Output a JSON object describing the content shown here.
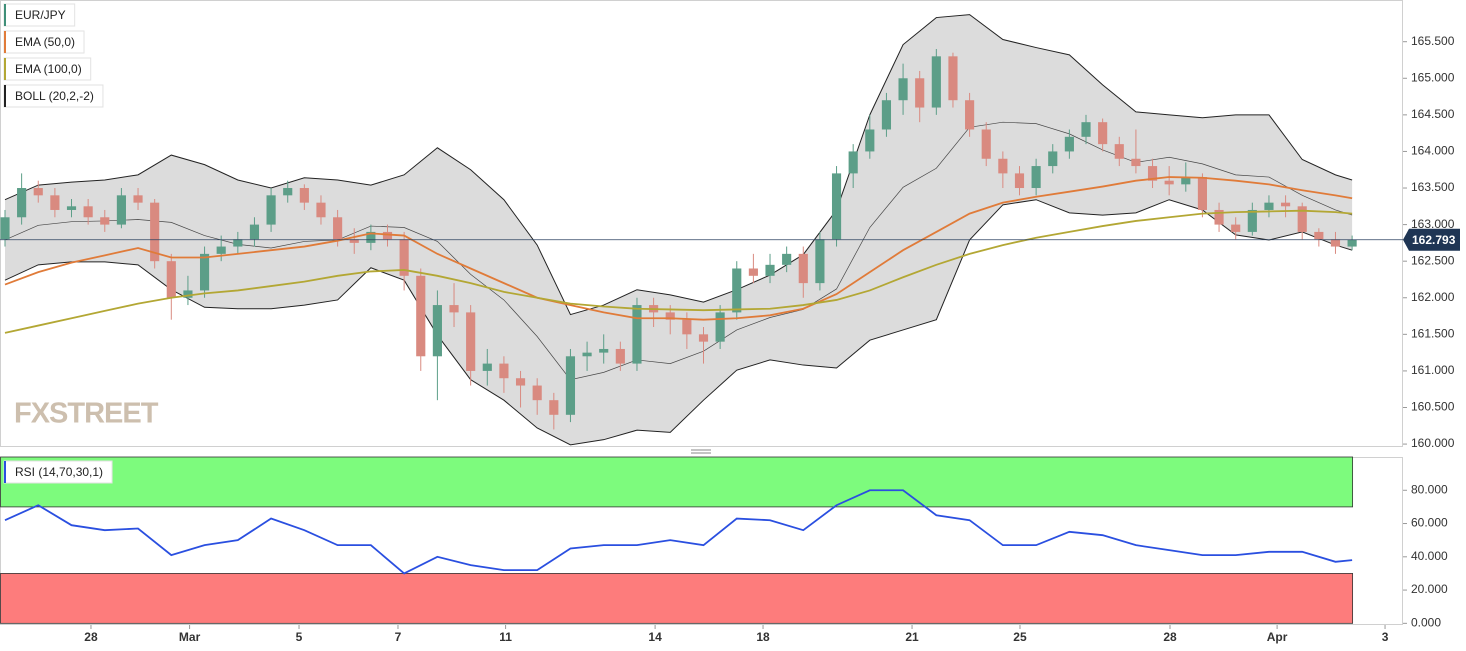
{
  "chart_data": [
    {
      "type": "candlestick",
      "watermark": "FXSTREET",
      "last_price": 162.793,
      "grid": false,
      "xlim": [
        -0.3,
        84.06
      ],
      "ylim": [
        159.96,
        166.07
      ],
      "yticks": [
        {
          "value": 160,
          "label": "160.000"
        },
        {
          "value": 160.5,
          "label": "160.500"
        },
        {
          "value": 161,
          "label": "161.000"
        },
        {
          "value": 161.5,
          "label": "161.500"
        },
        {
          "value": 162,
          "label": "162.000"
        },
        {
          "value": 162.5,
          "label": "162.500"
        },
        {
          "value": 163,
          "label": "163.000"
        },
        {
          "value": 163.5,
          "label": "163.500"
        },
        {
          "value": 164,
          "label": "164.000"
        },
        {
          "value": 164.5,
          "label": "164.500"
        },
        {
          "value": 165,
          "label": "165.000"
        },
        {
          "value": 165.5,
          "label": "165.500"
        }
      ],
      "series": [
        {
          "name": "EUR/JPY",
          "type": "candlestick",
          "color": "#3f8f78",
          "up_color": "#5c9e88",
          "down_color": "#d98a80",
          "x": [
            0,
            1,
            2,
            3,
            4,
            5,
            6,
            7,
            8,
            9,
            10,
            11,
            12,
            13,
            14,
            15,
            16,
            17,
            18,
            19,
            20,
            21,
            22,
            23,
            24,
            25,
            26,
            27,
            28,
            29,
            30,
            31,
            32,
            33,
            34,
            35,
            36,
            37,
            38,
            39,
            40,
            41,
            42,
            43,
            44,
            45,
            46,
            47,
            48,
            49,
            50,
            51,
            52,
            53,
            54,
            55,
            56,
            57,
            58,
            59,
            60,
            61,
            62,
            63,
            64,
            65,
            66,
            67,
            68,
            69,
            70,
            71,
            72,
            73,
            74,
            75,
            76,
            77,
            78,
            79,
            80,
            81
          ],
          "open": [
            162.8,
            163.1,
            163.5,
            163.4,
            163.2,
            163.25,
            163.1,
            163.0,
            163.4,
            163.3,
            162.5,
            162.0,
            162.1,
            162.6,
            162.7,
            162.8,
            163.0,
            163.4,
            163.5,
            163.3,
            163.1,
            162.8,
            162.75,
            162.9,
            162.8,
            162.3,
            161.2,
            161.9,
            161.8,
            161.0,
            161.1,
            160.9,
            160.8,
            160.6,
            160.4,
            161.2,
            161.25,
            161.3,
            161.1,
            161.9,
            161.8,
            161.7,
            161.5,
            161.4,
            161.8,
            162.4,
            162.3,
            162.45,
            162.6,
            162.2,
            162.8,
            163.7,
            164.0,
            164.3,
            164.7,
            165.0,
            164.6,
            165.3,
            164.7,
            164.3,
            163.9,
            163.7,
            163.5,
            163.8,
            164.0,
            164.2,
            164.4,
            164.1,
            163.9,
            163.8,
            163.6,
            163.55,
            163.65,
            163.2,
            163.0,
            162.9,
            163.2,
            163.3,
            163.25,
            162.9,
            162.8,
            162.7
          ],
          "high": [
            163.2,
            163.7,
            163.6,
            163.5,
            163.35,
            163.35,
            163.2,
            163.5,
            163.5,
            163.35,
            162.6,
            162.3,
            162.7,
            162.85,
            162.9,
            163.1,
            163.5,
            163.6,
            163.55,
            163.4,
            163.2,
            162.95,
            163.0,
            163.0,
            162.9,
            162.4,
            162.1,
            162.2,
            161.9,
            161.3,
            161.2,
            161.0,
            160.9,
            160.7,
            161.3,
            161.4,
            161.5,
            161.4,
            162.0,
            162.0,
            161.9,
            161.8,
            161.6,
            161.9,
            162.5,
            162.6,
            162.6,
            162.7,
            162.7,
            162.9,
            163.8,
            164.1,
            164.5,
            164.8,
            165.2,
            165.1,
            165.4,
            165.35,
            164.8,
            164.4,
            164.0,
            163.8,
            163.9,
            164.1,
            164.3,
            164.5,
            164.45,
            164.2,
            164.3,
            163.9,
            163.8,
            163.85,
            163.7,
            163.3,
            163.1,
            163.3,
            163.4,
            163.4,
            163.3,
            162.95,
            162.9,
            162.85
          ],
          "low": [
            162.7,
            163.0,
            163.3,
            163.1,
            163.1,
            163.0,
            162.9,
            162.95,
            163.2,
            162.4,
            161.7,
            161.9,
            162.0,
            162.5,
            162.6,
            162.7,
            162.9,
            163.3,
            163.2,
            163.0,
            162.7,
            162.6,
            162.65,
            162.7,
            162.1,
            161.0,
            160.6,
            161.6,
            160.8,
            160.8,
            160.7,
            160.5,
            160.4,
            160.2,
            160.3,
            161.0,
            161.1,
            161.0,
            161.0,
            161.6,
            161.5,
            161.3,
            161.1,
            161.3,
            161.7,
            162.2,
            162.2,
            162.35,
            162.0,
            162.1,
            162.7,
            163.5,
            163.9,
            164.2,
            164.5,
            164.4,
            164.5,
            164.6,
            164.2,
            163.8,
            163.5,
            163.4,
            163.4,
            163.7,
            163.9,
            164.1,
            164.0,
            163.8,
            163.7,
            163.5,
            163.4,
            163.45,
            163.1,
            162.9,
            162.8,
            162.85,
            163.1,
            163.1,
            162.8,
            162.7,
            162.6,
            162.65
          ],
          "close": [
            163.1,
            163.5,
            163.4,
            163.2,
            163.25,
            163.1,
            163.0,
            163.4,
            163.3,
            162.5,
            162.0,
            162.1,
            162.6,
            162.7,
            162.8,
            163.0,
            163.4,
            163.5,
            163.3,
            163.1,
            162.8,
            162.75,
            162.9,
            162.8,
            162.3,
            161.2,
            161.9,
            161.8,
            161.0,
            161.1,
            160.9,
            160.8,
            160.6,
            160.4,
            161.2,
            161.25,
            161.3,
            161.1,
            161.9,
            161.8,
            161.7,
            161.5,
            161.4,
            161.8,
            162.4,
            162.3,
            162.45,
            162.6,
            162.2,
            162.8,
            163.7,
            164.0,
            164.3,
            164.7,
            165.0,
            164.6,
            165.3,
            164.7,
            164.3,
            163.9,
            163.7,
            163.5,
            163.8,
            164.0,
            164.2,
            164.4,
            164.1,
            163.9,
            163.8,
            163.6,
            163.55,
            163.65,
            163.2,
            163.0,
            162.9,
            163.2,
            163.3,
            163.25,
            162.9,
            162.8,
            162.7,
            162.793
          ]
        },
        {
          "name": "EMA (50,0)",
          "type": "line",
          "color": "#e07b39",
          "x": [
            0,
            2,
            4,
            6,
            8,
            10,
            12,
            14,
            16,
            18,
            20,
            22,
            24,
            26,
            28,
            30,
            32,
            34,
            36,
            38,
            40,
            42,
            44,
            46,
            48,
            50,
            52,
            54,
            56,
            58,
            60,
            62,
            64,
            66,
            68,
            70,
            72,
            74,
            76,
            78,
            80,
            81
          ],
          "values": [
            162.18,
            162.35,
            162.48,
            162.58,
            162.68,
            162.55,
            162.55,
            162.6,
            162.65,
            162.7,
            162.78,
            162.88,
            162.85,
            162.6,
            162.4,
            162.2,
            162.0,
            161.9,
            161.8,
            161.72,
            161.72,
            161.7,
            161.72,
            161.76,
            161.85,
            162.05,
            162.35,
            162.65,
            162.9,
            163.15,
            163.3,
            163.38,
            163.45,
            163.52,
            163.6,
            163.65,
            163.64,
            163.6,
            163.55,
            163.47,
            163.4,
            163.36
          ]
        },
        {
          "name": "EMA (100,0)",
          "type": "line",
          "color": "#b3a734",
          "x": [
            0,
            2,
            4,
            6,
            8,
            10,
            12,
            14,
            16,
            18,
            20,
            22,
            24,
            26,
            28,
            30,
            32,
            34,
            36,
            38,
            40,
            42,
            44,
            46,
            48,
            50,
            52,
            54,
            56,
            58,
            60,
            62,
            64,
            66,
            68,
            70,
            72,
            74,
            76,
            78,
            80,
            81
          ],
          "values": [
            161.52,
            161.62,
            161.72,
            161.82,
            161.92,
            162.0,
            162.06,
            162.1,
            162.16,
            162.22,
            162.3,
            162.36,
            162.38,
            162.3,
            162.2,
            162.08,
            162.0,
            161.92,
            161.88,
            161.85,
            161.84,
            161.83,
            161.84,
            161.85,
            161.9,
            161.97,
            162.1,
            162.28,
            162.45,
            162.6,
            162.72,
            162.82,
            162.9,
            162.98,
            163.05,
            163.1,
            163.15,
            163.17,
            163.18,
            163.19,
            163.17,
            163.15
          ]
        },
        {
          "name": "BOLL (20,2,-2)",
          "type": "band",
          "color": "#222222",
          "fill": "#dcdcdc",
          "x": [
            0,
            2,
            4,
            6,
            8,
            10,
            12,
            14,
            16,
            18,
            20,
            22,
            24,
            26,
            28,
            30,
            32,
            34,
            36,
            38,
            40,
            42,
            44,
            46,
            48,
            50,
            52,
            54,
            56,
            58,
            60,
            62,
            64,
            66,
            68,
            70,
            72,
            74,
            76,
            78,
            80,
            81
          ],
          "upper": [
            163.34,
            163.54,
            163.58,
            163.61,
            163.68,
            163.95,
            163.82,
            163.61,
            163.5,
            163.64,
            163.61,
            163.54,
            163.68,
            164.05,
            163.75,
            163.34,
            162.72,
            161.77,
            161.9,
            162.11,
            162.04,
            161.94,
            162.11,
            162.31,
            162.59,
            163.2,
            164.5,
            165.46,
            165.83,
            165.87,
            165.53,
            165.42,
            165.32,
            164.91,
            164.54,
            164.5,
            164.46,
            164.5,
            164.5,
            163.89,
            163.68,
            163.61
          ],
          "middle": [
            162.79,
            162.99,
            163.04,
            163.05,
            163.07,
            163.03,
            162.85,
            162.73,
            162.68,
            162.77,
            162.79,
            162.98,
            162.96,
            162.77,
            162.32,
            161.97,
            161.47,
            160.88,
            160.98,
            161.15,
            161.1,
            161.27,
            161.56,
            161.73,
            161.84,
            162.12,
            162.96,
            163.51,
            163.77,
            164.33,
            164.4,
            164.38,
            164.24,
            164.02,
            163.85,
            163.92,
            163.83,
            163.68,
            163.65,
            163.4,
            163.2,
            163.13
          ],
          "lower": [
            162.24,
            162.45,
            162.49,
            162.49,
            162.45,
            162.11,
            161.87,
            161.85,
            161.85,
            161.9,
            161.97,
            162.41,
            162.24,
            161.49,
            160.88,
            160.6,
            160.22,
            159.99,
            160.06,
            160.19,
            160.16,
            160.6,
            161.01,
            161.15,
            161.08,
            161.04,
            161.42,
            161.56,
            161.7,
            162.79,
            163.27,
            163.34,
            163.16,
            163.13,
            163.16,
            163.34,
            163.2,
            162.86,
            162.79,
            162.9,
            162.72,
            162.65
          ]
        }
      ]
    },
    {
      "type": "line",
      "xlim": [
        -0.3,
        84.06
      ],
      "ylim": [
        -1,
        100
      ],
      "grid": false,
      "xticks": [
        {
          "value": 5.17,
          "label": "28"
        },
        {
          "value": 11.1,
          "label": "Mar"
        },
        {
          "value": 17.68,
          "label": "5"
        },
        {
          "value": 23.63,
          "label": "7"
        },
        {
          "value": 30.1,
          "label": "11"
        },
        {
          "value": 39.09,
          "label": "14"
        },
        {
          "value": 45.58,
          "label": "18"
        },
        {
          "value": 54.54,
          "label": "21"
        },
        {
          "value": 61.03,
          "label": "25"
        },
        {
          "value": 70.05,
          "label": "28"
        },
        {
          "value": 76.49,
          "label": "Apr"
        },
        {
          "value": 82.98,
          "label": "3"
        }
      ],
      "yticks": [
        {
          "value": 0,
          "label": "0.000"
        },
        {
          "value": 20,
          "label": "20.000"
        },
        {
          "value": 40,
          "label": "40.000"
        },
        {
          "value": 60,
          "label": "60.000"
        },
        {
          "value": 80,
          "label": "80.000"
        }
      ],
      "zones": [
        {
          "from": 70,
          "to": 100,
          "color": "#7dfb7d"
        },
        {
          "from": 0,
          "to": 30,
          "color": "#fd7c7c"
        }
      ],
      "series": [
        {
          "name": "RSI (14,70,30,1)",
          "type": "line",
          "color": "#2a4fe0",
          "x": [
            0,
            2,
            4,
            6,
            8,
            10,
            12,
            14,
            16,
            18,
            20,
            22,
            24,
            26,
            28,
            30,
            32,
            34,
            36,
            38,
            40,
            42,
            44,
            46,
            48,
            50,
            52,
            54,
            56,
            58,
            60,
            62,
            64,
            66,
            68,
            70,
            72,
            74,
            76,
            78,
            80,
            81
          ],
          "values": [
            62,
            71,
            59,
            56,
            57,
            41,
            47,
            50,
            63,
            56,
            47,
            47,
            30,
            40,
            35,
            32,
            32,
            45,
            47,
            47,
            50,
            47,
            63,
            62,
            56,
            71,
            80,
            80,
            65,
            62,
            47,
            47,
            55,
            53,
            47,
            44,
            41,
            41,
            43,
            43,
            37,
            38
          ]
        }
      ]
    }
  ]
}
